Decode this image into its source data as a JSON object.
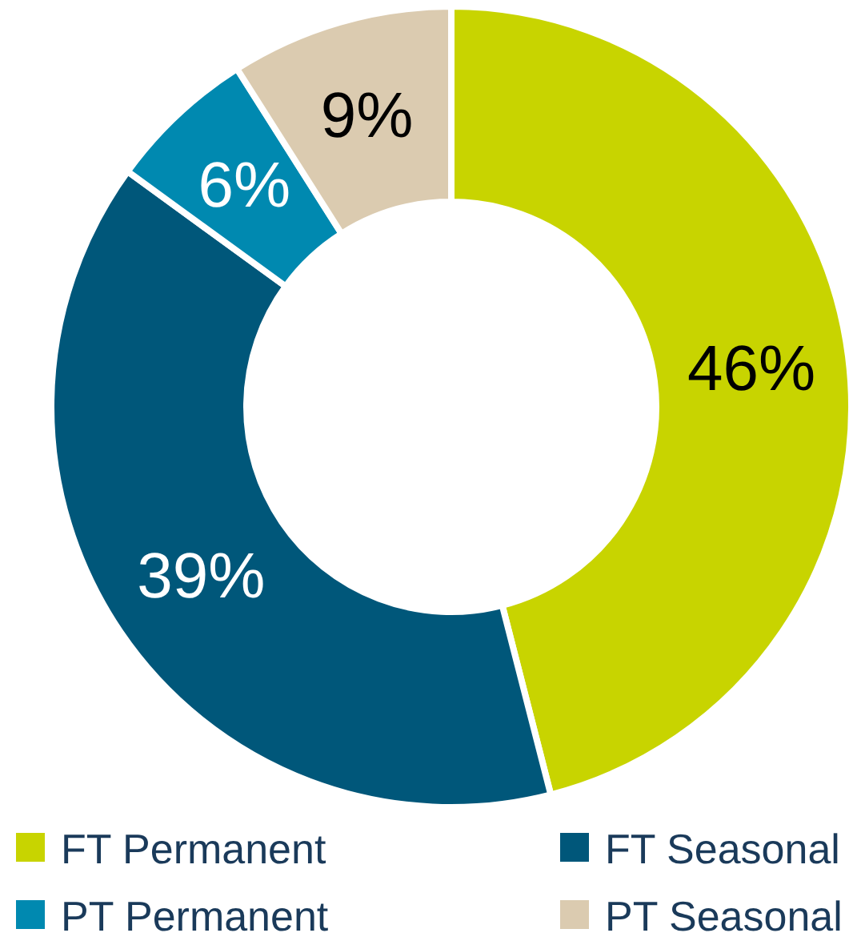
{
  "chart_data": {
    "type": "donut",
    "categories": [
      "FT Permanent",
      "FT Seasonal",
      "PT Permanent",
      "PT Seasonal"
    ],
    "values": [
      46,
      39,
      6,
      9
    ],
    "colors": [
      "#c8d400",
      "#00577a",
      "#0089b0",
      "#dbcbb0"
    ],
    "value_labels": [
      "46%",
      "39%",
      "6%",
      "9%"
    ],
    "legend": "bottom"
  }
}
